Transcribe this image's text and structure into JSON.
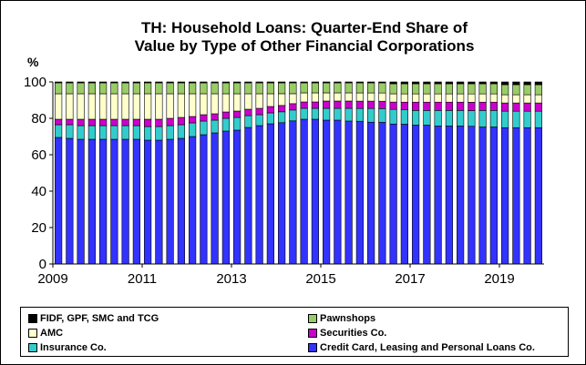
{
  "chart_data": {
    "type": "bar",
    "stacked": true,
    "title_lines": [
      "TH: Household Loans: Quarter-End Share of",
      "Value by Type of Other Financial Corporations"
    ],
    "unit_label": "%",
    "ylim": [
      0,
      100
    ],
    "y_ticks": [
      0,
      20,
      40,
      60,
      80,
      100
    ],
    "x_tick_labels": [
      "2009",
      "2011",
      "2013",
      "2015",
      "2017",
      "2019"
    ],
    "quarters_start": "2009Q1",
    "quarters_end": "2019Q4",
    "series": [
      {
        "name": "Credit Card, Leasing and Personal Loans Co.",
        "color": "#3333ff",
        "values": [
          69.5,
          69,
          68.5,
          68.5,
          68.5,
          68.5,
          68.5,
          68.5,
          68,
          68,
          68.5,
          69,
          70,
          71,
          72,
          73,
          73.5,
          75,
          76,
          77,
          78,
          79,
          79.5,
          79.5,
          79,
          79,
          78.5,
          78,
          77.5,
          77,
          76.5,
          76,
          75.5,
          75.5,
          75,
          75,
          75,
          74.5,
          74.5,
          74.5,
          74.5,
          74.5,
          74.5,
          74.5
        ]
      },
      {
        "name": "Insurance Co.",
        "color": "#33cccc",
        "values": [
          7,
          7.5,
          7.5,
          7.5,
          7.5,
          7.5,
          7.5,
          7.5,
          7.5,
          7.5,
          7.5,
          7.5,
          7.5,
          7.5,
          7,
          7,
          7,
          6.5,
          6,
          6,
          6,
          6,
          6,
          6,
          6.5,
          6.5,
          7,
          7,
          7.5,
          7.5,
          8,
          8,
          8,
          8,
          8.5,
          8.5,
          8.5,
          8.5,
          9,
          9,
          9,
          9,
          9,
          9
        ]
      },
      {
        "name": "Securities Co.",
        "color": "#cc00cc",
        "values": [
          3,
          3,
          3.5,
          3.5,
          3.5,
          3.5,
          3.5,
          3.5,
          4,
          4,
          4,
          4,
          3.5,
          3.5,
          3.5,
          3.5,
          3.5,
          3.5,
          3.5,
          3.5,
          3.5,
          3.5,
          3.5,
          3.5,
          4,
          4,
          4,
          4,
          4,
          4,
          4,
          4,
          4.5,
          4.5,
          4.5,
          4.5,
          4.5,
          4.5,
          4.5,
          4.5,
          4.5,
          4.5,
          4.5,
          4.5
        ]
      },
      {
        "name": "AMC",
        "color": "#ffffcc",
        "values": [
          14,
          14,
          14,
          14,
          14,
          14,
          14,
          14,
          14,
          14,
          13.5,
          13,
          12.5,
          11.5,
          11,
          10,
          9.5,
          8.5,
          8,
          7,
          6.5,
          5.5,
          5,
          5,
          4.5,
          4.5,
          4.5,
          4.5,
          4.5,
          4.5,
          4.5,
          4.5,
          4.5,
          4.5,
          4.5,
          4.5,
          4.5,
          4.5,
          4.5,
          4.5,
          4.5,
          4.5,
          4.5,
          4.5
        ]
      },
      {
        "name": "Pawnshops",
        "color": "#99cc66",
        "values": [
          6,
          6,
          6,
          6,
          6,
          6,
          6,
          6,
          6,
          6,
          6,
          6,
          6,
          6,
          6,
          6,
          6,
          6,
          6,
          6,
          6,
          6,
          5.5,
          5.5,
          5.5,
          5.5,
          5.5,
          5.5,
          5.5,
          5.5,
          5.5,
          5.5,
          5.5,
          5.5,
          5.5,
          5.5,
          5.5,
          5.5,
          5.5,
          5.5,
          5.5,
          5.5,
          5.5,
          5.5
        ]
      },
      {
        "name": "FIDF, GPF, SMC and TCG",
        "color": "#000000",
        "values": [
          0.5,
          0.5,
          0.5,
          0.5,
          0.5,
          0.5,
          0.5,
          0.5,
          0.5,
          0.5,
          0.5,
          0.5,
          0.5,
          0.5,
          0.5,
          0.5,
          0.5,
          0.5,
          0.5,
          0.5,
          0.5,
          0.5,
          0.5,
          0.5,
          0.5,
          0.5,
          0.5,
          0.5,
          0.5,
          0.5,
          1,
          1,
          1,
          1,
          1,
          1,
          1,
          1,
          1,
          1,
          1.5,
          1.5,
          1.5,
          1.5
        ]
      }
    ],
    "legend": {
      "placement": "bottom",
      "items": [
        {
          "label": "FIDF, GPF, SMC and TCG",
          "color": "#000000"
        },
        {
          "label": "Pawnshops",
          "color": "#99cc66"
        },
        {
          "label": "AMC",
          "color": "#ffffcc"
        },
        {
          "label": "Securities Co.",
          "color": "#cc00cc"
        },
        {
          "label": "Insurance Co.",
          "color": "#33cccc"
        },
        {
          "label": "Credit Card, Leasing and Personal Loans Co.",
          "color": "#3333ff"
        }
      ]
    },
    "grid": false
  }
}
